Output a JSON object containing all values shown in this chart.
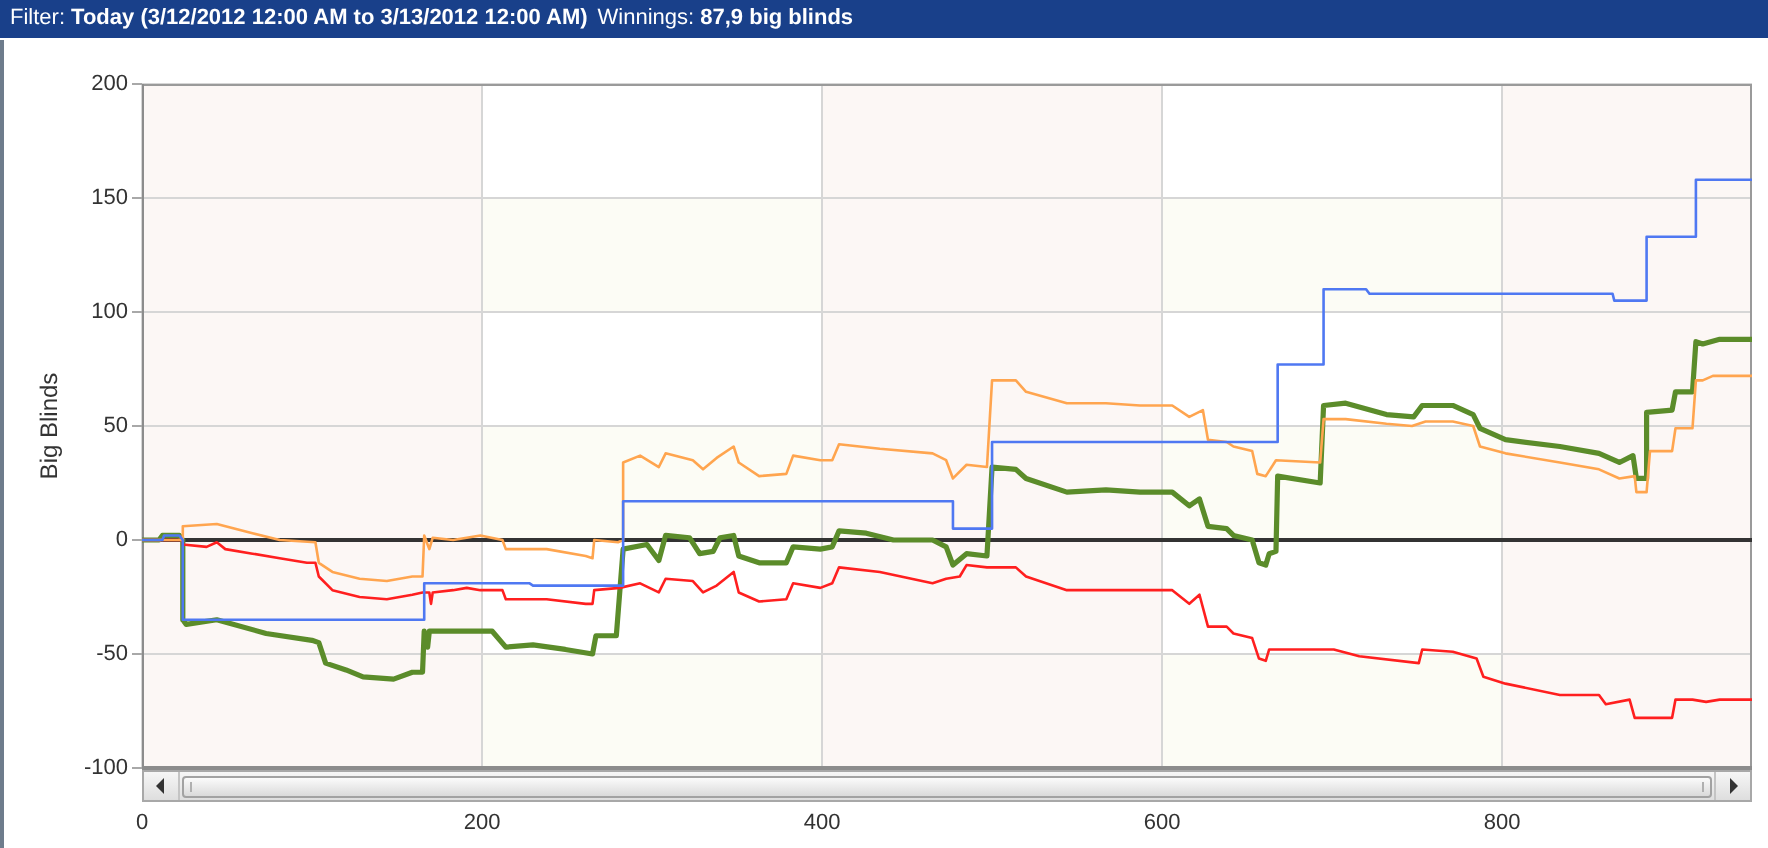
{
  "chart_data": {
    "type": "line",
    "title": "Filter: Today (3/12/2012 12:00 AM to 3/13/2012 12:00 AM)",
    "subtitle": "Winnings: 87,9 big blinds",
    "ylabel": "Big Blinds",
    "series": [
      {
        "color": "#4f78f2",
        "x": [
          0,
          12,
          13,
          22,
          24,
          24,
          166,
          166,
          228,
          230,
          283,
          283,
          477,
          477,
          500,
          500,
          668,
          668,
          695,
          695,
          720,
          722,
          865,
          866,
          885,
          885,
          914,
          914,
          947
        ],
        "values": [
          0,
          0,
          2,
          2,
          0,
          -35,
          -35,
          -19,
          -19,
          -20,
          -20,
          17,
          17,
          5,
          5,
          43,
          43,
          77,
          77,
          110,
          110,
          108,
          108,
          105,
          105,
          133,
          133,
          158,
          158
        ]
      },
      {
        "color": "#ffa54f",
        "x": [
          0,
          24,
          24,
          44,
          65,
          81,
          102,
          104,
          112,
          128,
          144,
          159,
          165,
          166,
          169,
          171,
          183,
          199,
          212,
          214,
          238,
          261,
          265,
          266,
          280,
          283,
          283,
          293,
          304,
          308,
          324,
          330,
          338,
          348,
          351,
          363,
          379,
          383,
          399,
          406,
          410,
          434,
          465,
          473,
          477,
          485,
          497,
          500,
          514,
          520,
          544,
          567,
          587,
          606,
          616,
          624,
          627,
          638,
          642,
          653,
          656,
          661,
          667,
          693,
          695,
          708,
          732,
          747,
          755,
          771,
          783,
          787,
          802,
          834,
          857,
          869,
          878,
          879,
          885,
          887,
          900,
          902,
          912,
          914,
          918,
          924,
          947
        ],
        "values": [
          0,
          0,
          6,
          7,
          3,
          0,
          -1,
          -10,
          -14,
          -17,
          -18,
          -16,
          -16,
          2,
          -4,
          1,
          0,
          2,
          0,
          -4,
          -4,
          -7,
          -8,
          0,
          -1,
          0,
          34,
          37,
          32,
          38,
          35,
          31,
          36,
          41,
          34,
          28,
          29,
          37,
          35,
          35,
          42,
          40,
          38,
          35,
          27,
          33,
          32,
          70,
          70,
          65,
          60,
          60,
          59,
          59,
          54,
          57,
          44,
          43,
          41,
          39,
          29,
          28,
          35,
          34,
          53,
          53,
          51,
          50,
          52,
          52,
          50,
          41,
          38,
          34,
          31,
          27,
          28,
          21,
          21,
          39,
          39,
          49,
          49,
          70,
          70,
          72,
          72
        ]
      },
      {
        "color": "#ff1f1f",
        "x": [
          0,
          24,
          24,
          38,
          44,
          49,
          65,
          81,
          97,
          102,
          104,
          112,
          128,
          144,
          159,
          165,
          169,
          170,
          171,
          183,
          191,
          199,
          212,
          214,
          238,
          261,
          265,
          266,
          281,
          293,
          304,
          308,
          324,
          330,
          338,
          348,
          351,
          363,
          379,
          383,
          399,
          406,
          410,
          434,
          465,
          473,
          481,
          485,
          497,
          514,
          520,
          544,
          567,
          587,
          606,
          616,
          622,
          627,
          638,
          642,
          653,
          657,
          661,
          663,
          701,
          716,
          751,
          753,
          771,
          785,
          789,
          802,
          834,
          857,
          861,
          875,
          878,
          900,
          902,
          912,
          920,
          928,
          947
        ],
        "values": [
          0,
          0,
          -2,
          -3,
          -1,
          -4,
          -6,
          -8,
          -10,
          -10,
          -16,
          -22,
          -25,
          -26,
          -24,
          -23,
          -23,
          -28,
          -23,
          -22,
          -21,
          -22,
          -22,
          -26,
          -26,
          -28,
          -28,
          -22,
          -21,
          -19,
          -23,
          -17,
          -18,
          -23,
          -20,
          -14,
          -23,
          -27,
          -26,
          -19,
          -21,
          -19,
          -12,
          -14,
          -19,
          -17,
          -16,
          -11,
          -12,
          -12,
          -16,
          -22,
          -22,
          -22,
          -22,
          -28,
          -24,
          -38,
          -38,
          -41,
          -43,
          -52,
          -53,
          -48,
          -48,
          -51,
          -54,
          -48,
          -49,
          -52,
          -60,
          -63,
          -68,
          -68,
          -72,
          -70,
          -78,
          -78,
          -70,
          -70,
          -71,
          -70,
          -70
        ]
      },
      {
        "color": "#5b8c2a",
        "x": [
          0,
          10,
          12,
          22,
          24,
          24,
          26,
          44,
          73,
          100,
          104,
          108,
          120,
          130,
          148,
          159,
          165,
          166,
          168,
          169,
          191,
          206,
          214,
          230,
          249,
          265,
          267,
          279,
          283,
          297,
          304,
          308,
          322,
          328,
          336,
          340,
          348,
          351,
          363,
          379,
          383,
          399,
          406,
          410,
          426,
          442,
          465,
          473,
          477,
          485,
          497,
          500,
          514,
          520,
          544,
          567,
          587,
          606,
          616,
          622,
          627,
          638,
          642,
          653,
          657,
          661,
          663,
          667,
          668,
          693,
          695,
          708,
          732,
          748,
          753,
          771,
          783,
          787,
          802,
          834,
          857,
          869,
          877,
          879,
          885,
          885,
          900,
          902,
          912,
          914,
          918,
          928,
          947
        ],
        "values": [
          0,
          0,
          2,
          2,
          0,
          -35,
          -37,
          -35,
          -41,
          -44,
          -45,
          -54,
          -57,
          -60,
          -61,
          -58,
          -58,
          -40,
          -47,
          -40,
          -40,
          -40,
          -47,
          -46,
          -48,
          -50,
          -42,
          -42,
          -4,
          -2,
          -9,
          2,
          1,
          -6,
          -5,
          1,
          2,
          -7,
          -10,
          -10,
          -3,
          -4,
          -3,
          4,
          3,
          0,
          0,
          -3,
          -11,
          -6,
          -7,
          32,
          31,
          27,
          21,
          22,
          21,
          21,
          15,
          18,
          6,
          5,
          2,
          0,
          -10,
          -11,
          -6,
          -5,
          28,
          25,
          59,
          60,
          55,
          54,
          59,
          59,
          55,
          49,
          44,
          41,
          38,
          34,
          37,
          27,
          27,
          56,
          57,
          65,
          65,
          87,
          86,
          88,
          88
        ]
      }
    ],
    "xlim": [
      0,
      947
    ],
    "xticks": [
      0,
      200,
      400,
      600,
      800
    ],
    "ylim": [
      -100,
      200
    ],
    "yticks": [
      -100,
      -50,
      0,
      50,
      100,
      150,
      200
    ],
    "grid": true,
    "marker": "none",
    "line_style": "solid",
    "ref_lines": [
      {
        "axis": "y",
        "value": 0,
        "color": "#333333"
      }
    ]
  }
}
